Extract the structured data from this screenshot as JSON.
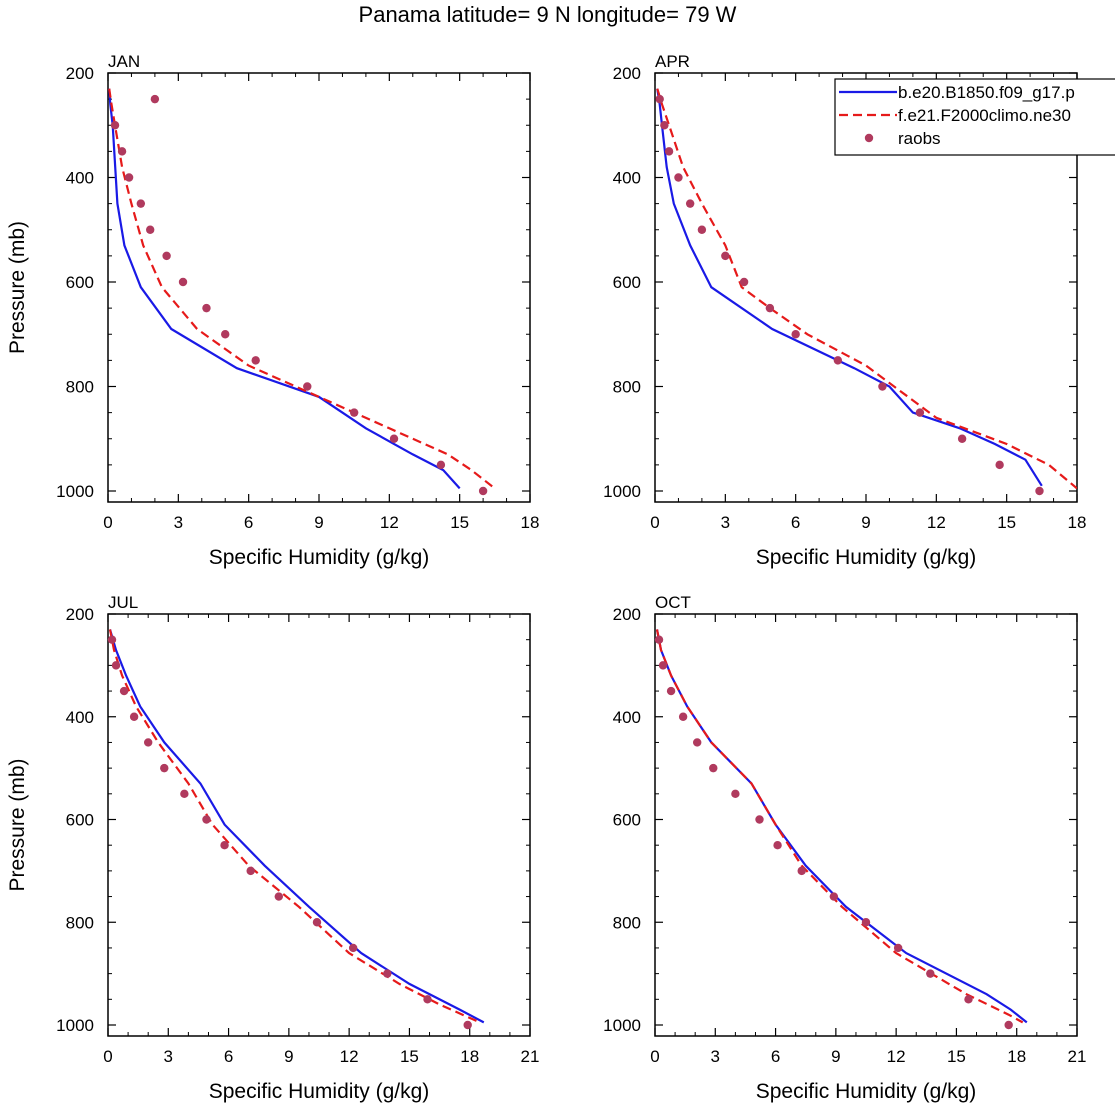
{
  "title": "Panama  latitude= 9 N longitude= 79 W",
  "legend": {
    "entries": [
      {
        "label": "b.e20.B1850.f09_g17.p",
        "style": "solid",
        "color": "#1a1ae6"
      },
      {
        "label": "f.e21.F2000climo.ne30",
        "style": "dashed",
        "color": "#e61a1a"
      },
      {
        "label": "raobs",
        "style": "dot",
        "color": "#b03a5e"
      }
    ]
  },
  "colors": {
    "model_b": "#1a1ae6",
    "model_f": "#e61a1a",
    "raobs": "#b03a5e"
  },
  "chart_data": [
    {
      "type": "line",
      "month": "JAN",
      "xlabel": "Specific Humidity (g/kg)",
      "ylabel": "Pressure (mb)",
      "xlim": [
        0,
        18
      ],
      "ylim": [
        200,
        1000
      ],
      "y_reversed": true,
      "xticks": [
        "0",
        "3",
        "6",
        "9",
        "12",
        "15",
        "18"
      ],
      "yticks": [
        "200",
        "400",
        "600",
        "800",
        "1000"
      ],
      "series": [
        {
          "name": "b.e20.B1850.f09_g17.p",
          "kind": "line",
          "x": [
            0.05,
            0.1,
            0.2,
            0.4,
            0.7,
            1.4,
            2.7,
            5.5,
            9,
            11,
            13,
            14.3,
            15
          ],
          "y": [
            230,
            260,
            300,
            450,
            530,
            610,
            690,
            765,
            820,
            880,
            930,
            960,
            995
          ]
        },
        {
          "name": "f.e21.F2000climo.ne30",
          "kind": "line",
          "x": [
            0.05,
            0.15,
            0.3,
            0.6,
            1,
            1.5,
            2.3,
            3.8,
            6,
            9,
            12,
            14.5,
            15.5,
            16.5
          ],
          "y": [
            230,
            260,
            300,
            380,
            450,
            530,
            610,
            690,
            760,
            820,
            880,
            930,
            960,
            995
          ]
        },
        {
          "name": "raobs",
          "kind": "points",
          "x": [
            2,
            0.3,
            0.6,
            0.9,
            1.4,
            1.8,
            2.5,
            3.2,
            4.2,
            5,
            6.3,
            8.5,
            10.5,
            12.2,
            14.2,
            16
          ],
          "y": [
            250,
            300,
            350,
            400,
            450,
            500,
            550,
            600,
            650,
            700,
            750,
            800,
            850,
            900,
            950,
            1000
          ]
        }
      ]
    },
    {
      "type": "line",
      "month": "APR",
      "xlabel": "Specific Humidity (g/kg)",
      "ylabel": "",
      "xlim": [
        0,
        18
      ],
      "ylim": [
        200,
        1000
      ],
      "y_reversed": true,
      "xticks": [
        "0",
        "3",
        "6",
        "9",
        "12",
        "15",
        "18"
      ],
      "yticks": [
        "200",
        "400",
        "600",
        "800",
        "1000"
      ],
      "series": [
        {
          "name": "b.e20.B1850.f09_g17.p",
          "kind": "line",
          "x": [
            0.1,
            0.2,
            0.3,
            0.5,
            0.8,
            1.5,
            2.4,
            5,
            8.5,
            10,
            11,
            13,
            14.5,
            15.8,
            16.5
          ],
          "y": [
            230,
            260,
            300,
            380,
            450,
            530,
            610,
            690,
            765,
            800,
            850,
            880,
            910,
            940,
            990
          ]
        },
        {
          "name": "f.e21.F2000climo.ne30",
          "kind": "line",
          "x": [
            0.1,
            0.3,
            0.6,
            1.2,
            2,
            3,
            3.7,
            4.9,
            6.5,
            9,
            12,
            15,
            16.8,
            18
          ],
          "y": [
            230,
            260,
            300,
            380,
            450,
            530,
            610,
            650,
            700,
            760,
            860,
            910,
            950,
            995
          ]
        },
        {
          "name": "raobs",
          "kind": "points",
          "x": [
            0.2,
            0.4,
            0.6,
            1,
            1.5,
            2,
            3,
            3.8,
            4.9,
            6,
            7.8,
            9.7,
            11.3,
            13.1,
            14.7,
            16.4
          ],
          "y": [
            250,
            300,
            350,
            400,
            450,
            500,
            550,
            600,
            650,
            700,
            750,
            800,
            850,
            900,
            950,
            1000
          ]
        }
      ]
    },
    {
      "type": "line",
      "month": "JUL",
      "xlabel": "Specific Humidity (g/kg)",
      "ylabel": "Pressure (mb)",
      "xlim": [
        0,
        21
      ],
      "ylim": [
        200,
        1000
      ],
      "y_reversed": true,
      "xticks": [
        "0",
        "3",
        "6",
        "9",
        "12",
        "15",
        "18",
        "21"
      ],
      "yticks": [
        "200",
        "400",
        "600",
        "800",
        "1000"
      ],
      "series": [
        {
          "name": "b.e20.B1850.f09_g17.p",
          "kind": "line",
          "x": [
            0.1,
            0.4,
            0.9,
            1.6,
            2.8,
            4.6,
            5.8,
            7.8,
            10,
            12.6,
            15,
            17.5,
            18.7
          ],
          "y": [
            230,
            270,
            320,
            380,
            450,
            530,
            610,
            690,
            770,
            860,
            920,
            970,
            995
          ]
        },
        {
          "name": "f.e21.F2000climo.ne30",
          "kind": "line",
          "x": [
            0.1,
            0.3,
            0.7,
            1.4,
            2.5,
            4,
            5.2,
            7,
            9.5,
            12,
            14.5,
            16.5,
            18.5
          ],
          "y": [
            230,
            270,
            320,
            380,
            450,
            530,
            610,
            690,
            770,
            860,
            920,
            960,
            995
          ]
        },
        {
          "name": "raobs",
          "kind": "points",
          "x": [
            0.2,
            0.4,
            0.8,
            1.3,
            2,
            2.8,
            3.8,
            4.9,
            5.8,
            7.1,
            8.5,
            10.4,
            12.2,
            13.9,
            15.9,
            17.9
          ],
          "y": [
            250,
            300,
            350,
            400,
            450,
            500,
            550,
            600,
            650,
            700,
            750,
            800,
            850,
            900,
            950,
            1000
          ]
        }
      ]
    },
    {
      "type": "line",
      "month": "OCT",
      "xlabel": "Specific Humidity (g/kg)",
      "ylabel": "",
      "xlim": [
        0,
        21
      ],
      "ylim": [
        200,
        1000
      ],
      "y_reversed": true,
      "xticks": [
        "0",
        "3",
        "6",
        "9",
        "12",
        "15",
        "18",
        "21"
      ],
      "yticks": [
        "200",
        "400",
        "600",
        "800",
        "1000"
      ],
      "series": [
        {
          "name": "b.e20.B1850.f09_g17.p",
          "kind": "line",
          "x": [
            0.1,
            0.3,
            0.8,
            1.6,
            2.8,
            4.8,
            6,
            7.5,
            9.5,
            12.5,
            16.5,
            17.7,
            18.5
          ],
          "y": [
            230,
            270,
            320,
            380,
            450,
            530,
            610,
            690,
            770,
            860,
            940,
            970,
            995
          ]
        },
        {
          "name": "f.e21.F2000climo.ne30",
          "kind": "line",
          "x": [
            0.1,
            0.3,
            0.8,
            1.6,
            2.8,
            4.8,
            6,
            7.3,
            9.3,
            12,
            15.5,
            17.6,
            18.3
          ],
          "y": [
            230,
            270,
            320,
            380,
            450,
            530,
            610,
            690,
            770,
            860,
            940,
            980,
            995
          ]
        },
        {
          "name": "raobs",
          "kind": "points",
          "x": [
            0.2,
            0.4,
            0.8,
            1.4,
            2.1,
            2.9,
            4,
            5.2,
            6.1,
            7.3,
            8.9,
            10.5,
            12.1,
            13.7,
            15.6,
            17.6
          ],
          "y": [
            250,
            300,
            350,
            400,
            450,
            500,
            550,
            600,
            650,
            700,
            750,
            800,
            850,
            900,
            950,
            1000
          ]
        }
      ]
    }
  ]
}
